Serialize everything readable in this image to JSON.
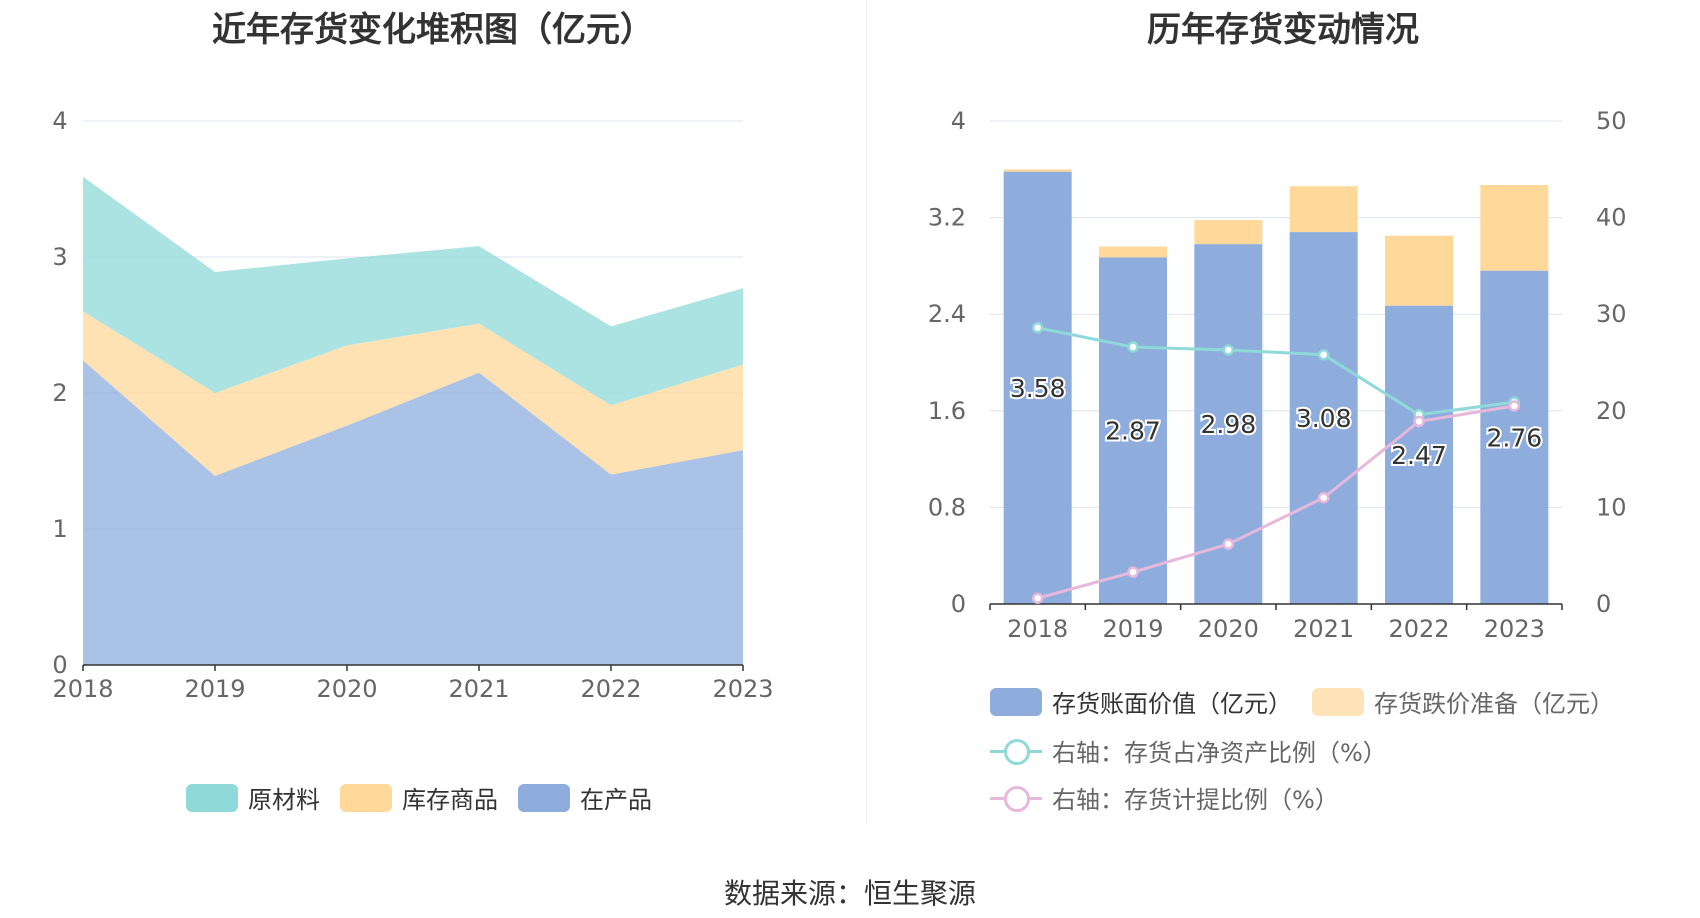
{
  "left_chart": {
    "title": "近年存货变化堆积图（亿元）",
    "legend": [
      {
        "label": "原材料",
        "color": "#8fd9d9"
      },
      {
        "label": "库存商品",
        "color": "#ffd89a"
      },
      {
        "label": "在产品",
        "color": "#8eaddc"
      }
    ]
  },
  "right_chart": {
    "title": "历年存货变动情况",
    "legend": [
      {
        "label": "存货账面价值（亿元）",
        "color": "#8eaddc"
      },
      {
        "label": "存货跌价准备（亿元）",
        "color": "#ffe3b8"
      },
      {
        "label": "右轴：存货占净资产比例（%）",
        "color": "#8fd9d9"
      },
      {
        "label": "右轴：存货计提比例（%）",
        "color": "#e6b8dc"
      }
    ]
  },
  "source": "数据来源：恒生聚源",
  "chart_data": [
    {
      "type": "area",
      "stacked": true,
      "title": "近年存货变化堆积图（亿元）",
      "categories": [
        "2018",
        "2019",
        "2020",
        "2021",
        "2022",
        "2023"
      ],
      "ylim": [
        0,
        4
      ],
      "yticks": [
        "0",
        "1",
        "2",
        "3",
        "4"
      ],
      "grid": true,
      "legend_position": "bottom",
      "series": [
        {
          "name": "在产品",
          "color": "#8eaddc",
          "values": [
            2.24,
            1.39,
            1.76,
            2.15,
            1.4,
            1.58
          ]
        },
        {
          "name": "库存商品",
          "color": "#ffd89a",
          "values": [
            0.36,
            0.61,
            0.59,
            0.36,
            0.51,
            0.63
          ]
        },
        {
          "name": "原材料",
          "color": "#8fd9d9",
          "values": [
            0.99,
            0.89,
            0.64,
            0.57,
            0.58,
            0.56
          ]
        }
      ]
    },
    {
      "type": "bar",
      "stacked": true,
      "title": "历年存货变动情况",
      "categories": [
        "2018",
        "2019",
        "2020",
        "2021",
        "2022",
        "2023"
      ],
      "ylim": [
        0,
        4
      ],
      "yticks": [
        "0",
        "0.8",
        "1.6",
        "2.4",
        "3.2",
        "4"
      ],
      "y2lim": [
        0,
        50
      ],
      "y2ticks": [
        "0",
        "10",
        "20",
        "30",
        "40",
        "50"
      ],
      "grid": true,
      "legend_position": "bottom",
      "series": [
        {
          "name": "存货账面价值（亿元）",
          "color": "#8eaddc",
          "values": [
            3.58,
            2.87,
            2.98,
            3.08,
            2.47,
            2.76
          ],
          "labels": [
            "3.58",
            "2.87",
            "2.98",
            "3.08",
            "2.47",
            "2.76"
          ]
        },
        {
          "name": "存货跌价准备（亿元）",
          "color": "#ffd89a",
          "values": [
            0.02,
            0.09,
            0.2,
            0.38,
            0.58,
            0.71
          ]
        }
      ],
      "line_series": [
        {
          "name": "右轴：存货占净资产比例（%）",
          "color": "#8fd9d9",
          "axis": "right",
          "values": [
            28.6,
            26.6,
            26.3,
            25.8,
            19.6,
            20.9
          ]
        },
        {
          "name": "右轴：存货计提比例（%）",
          "color": "#e6b8dc",
          "axis": "right",
          "values": [
            0.6,
            3.3,
            6.2,
            11.0,
            18.9,
            20.5
          ]
        }
      ]
    }
  ]
}
